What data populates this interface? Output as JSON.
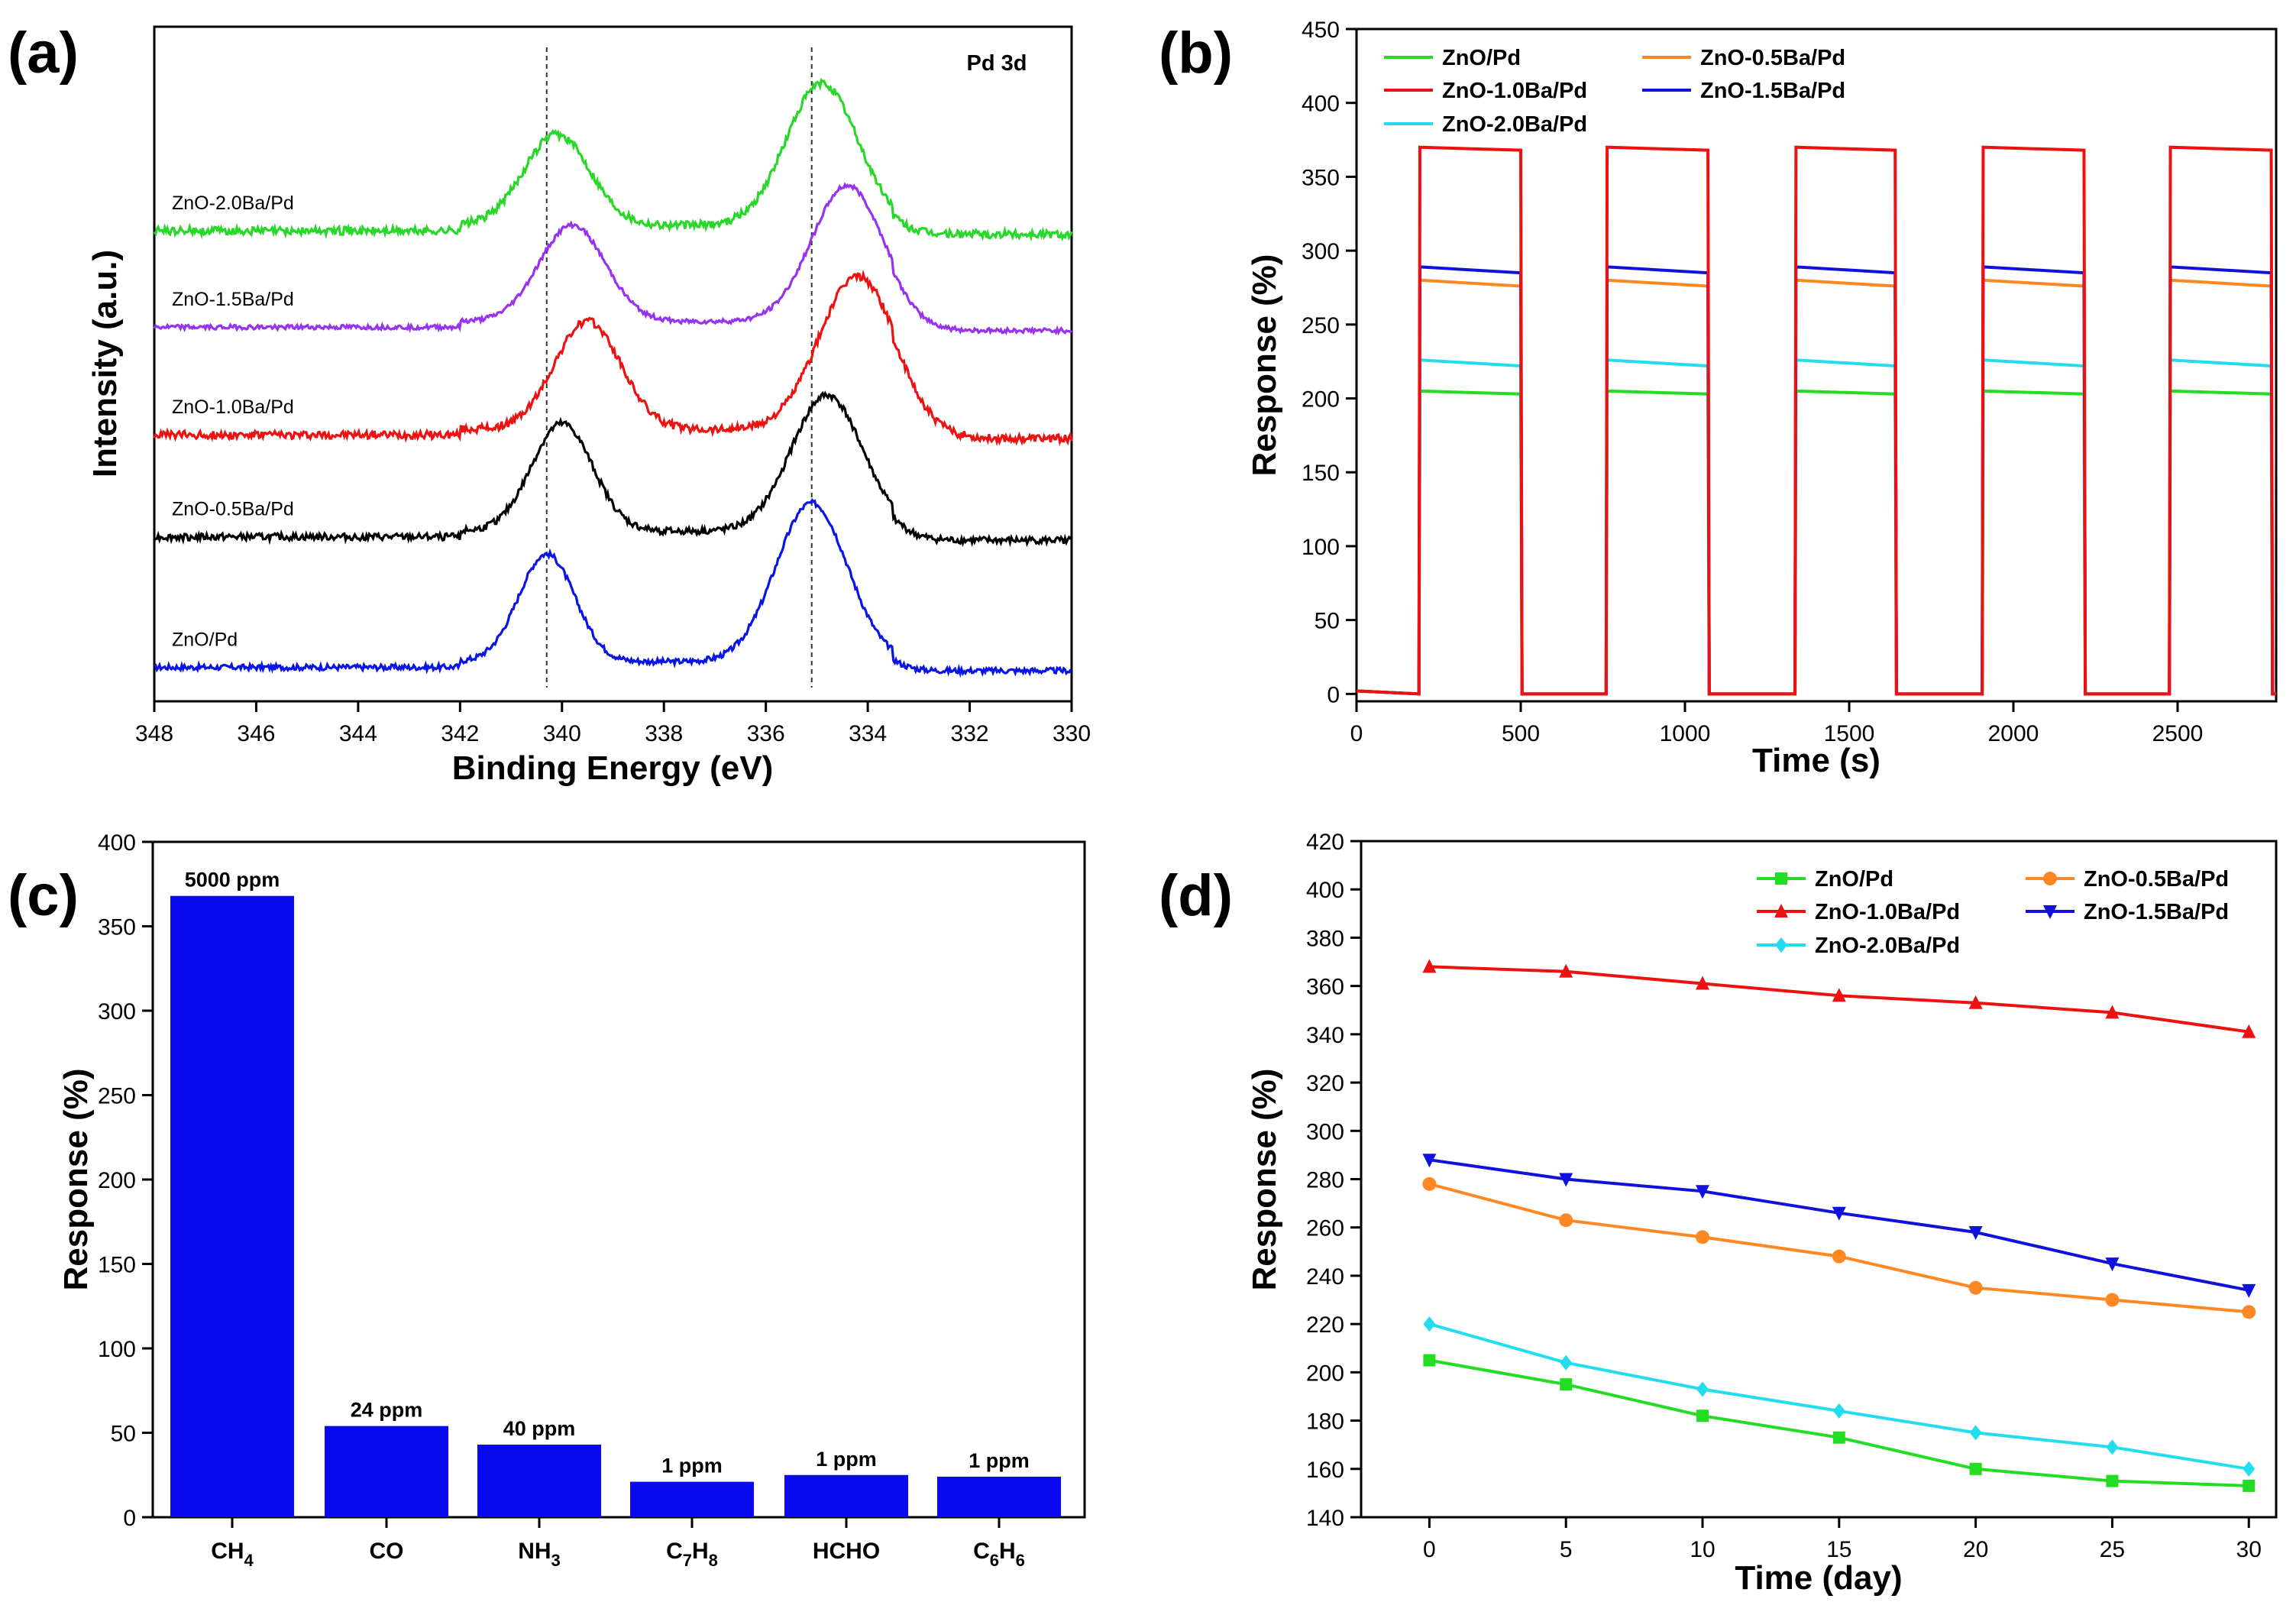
{
  "chart_data": [
    {
      "panel": "(a)",
      "type": "line",
      "title": "",
      "annotation": "Pd 3d",
      "xlabel": "Binding Energy (eV)",
      "ylabel": "Intensity (a.u.)",
      "xlim": [
        348,
        330
      ],
      "x_ticks": [
        348,
        346,
        344,
        342,
        340,
        338,
        336,
        334,
        332,
        330
      ],
      "y_ticks_shown": false,
      "reference_lines_x": [
        340.3,
        335.1
      ],
      "series": [
        {
          "name": "ZnO/Pd",
          "color": "#0a14e6",
          "baseline": 0.0,
          "peaks": [
            {
              "center": 340.3,
              "height": 0.95,
              "width": 0.55
            },
            {
              "center": 335.1,
              "height": 1.4,
              "width": 0.7
            }
          ],
          "noise": 0.025
        },
        {
          "name": "ZnO-0.5Ba/Pd",
          "color": "#000000",
          "baseline": 1.15,
          "peaks": [
            {
              "center": 340.0,
              "height": 0.95,
              "width": 0.6
            },
            {
              "center": 334.8,
              "height": 1.2,
              "width": 0.7
            }
          ],
          "noise": 0.03
        },
        {
          "name": "ZnO-1.0Ba/Pd",
          "color": "#ee1111",
          "baseline": 2.05,
          "peaks": [
            {
              "center": 339.5,
              "height": 0.95,
              "width": 0.65
            },
            {
              "center": 334.2,
              "height": 1.35,
              "width": 0.75
            }
          ],
          "noise": 0.035
        },
        {
          "name": "ZnO-1.5Ba/Pd",
          "color": "#9932ee",
          "baseline": 3.0,
          "peaks": [
            {
              "center": 339.8,
              "height": 0.85,
              "width": 0.65
            },
            {
              "center": 334.4,
              "height": 1.2,
              "width": 0.7
            }
          ],
          "noise": 0.02
        },
        {
          "name": "ZnO-2.0Ba/Pd",
          "color": "#28d828",
          "baseline": 3.85,
          "peaks": [
            {
              "center": 340.1,
              "height": 0.8,
              "width": 0.65
            },
            {
              "center": 334.9,
              "height": 1.25,
              "width": 0.7
            }
          ],
          "noise": 0.035
        }
      ]
    },
    {
      "panel": "(b)",
      "type": "line",
      "title": "",
      "xlabel": "Time (s)",
      "ylabel": "Response (%)",
      "xlim": [
        0,
        2800
      ],
      "ylim": [
        -5,
        450
      ],
      "x_ticks": [
        0,
        500,
        1000,
        1500,
        2000,
        2500
      ],
      "y_ticks": [
        0,
        50,
        100,
        150,
        200,
        250,
        300,
        350,
        400,
        450
      ],
      "pulses": [
        {
          "on": 190,
          "off": 500
        },
        {
          "on": 760,
          "off": 1070
        },
        {
          "on": 1335,
          "off": 1640
        },
        {
          "on": 1905,
          "off": 2215
        },
        {
          "on": 2475,
          "off": 2785
        }
      ],
      "series": [
        {
          "name": "ZnO/Pd",
          "color": "#22dd22",
          "start": 205,
          "end": 203
        },
        {
          "name": "ZnO-0.5Ba/Pd",
          "color": "#ff8822",
          "start": 280,
          "end": 276
        },
        {
          "name": "ZnO-1.0Ba/Pd",
          "color": "#ee1111",
          "start": 370,
          "end": 368
        },
        {
          "name": "ZnO-1.5Ba/Pd",
          "color": "#1111dd",
          "start": 289,
          "end": 285
        },
        {
          "name": "ZnO-2.0Ba/Pd",
          "color": "#22ddee",
          "start": 226,
          "end": 222
        }
      ],
      "legend": [
        "ZnO/Pd",
        "ZnO-0.5Ba/Pd",
        "ZnO-1.0Ba/Pd",
        "ZnO-1.5Ba/Pd",
        "ZnO-2.0Ba/Pd"
      ]
    },
    {
      "panel": "(c)",
      "type": "bar",
      "title": "",
      "xlabel": "",
      "ylabel": "Response (%)",
      "ylim": [
        0,
        400
      ],
      "y_ticks": [
        0,
        50,
        100,
        150,
        200,
        250,
        300,
        350,
        400
      ],
      "bar_color": "#0a0af0",
      "categories": [
        {
          "base": "CH",
          "sub": "4",
          "tail": ""
        },
        {
          "base": "CO",
          "sub": "",
          "tail": ""
        },
        {
          "base": "NH",
          "sub": "3",
          "tail": ""
        },
        {
          "base": "C",
          "sub": "7",
          "tail": "H",
          "sub2": "8"
        },
        {
          "base": "HCHO",
          "sub": "",
          "tail": ""
        },
        {
          "base": "C",
          "sub": "6",
          "tail": "H",
          "sub2": "6"
        }
      ],
      "values": [
        368,
        54,
        43,
        21,
        25,
        24
      ],
      "data_labels": [
        "5000 ppm",
        "24 ppm",
        "40 ppm",
        "1 ppm",
        "1 ppm",
        "1 ppm"
      ]
    },
    {
      "panel": "(d)",
      "type": "line",
      "title": "",
      "xlabel": "Time (day)",
      "ylabel": "Response (%)",
      "xlim": [
        -2.5,
        31
      ],
      "ylim": [
        140,
        420
      ],
      "x_ticks": [
        0,
        5,
        10,
        15,
        20,
        25,
        30
      ],
      "y_ticks": [
        140,
        160,
        180,
        200,
        220,
        240,
        260,
        280,
        300,
        320,
        340,
        360,
        380,
        400,
        420
      ],
      "x": [
        0,
        5,
        10,
        15,
        20,
        25,
        30
      ],
      "series": [
        {
          "name": "ZnO/Pd",
          "color": "#22dd22",
          "marker": "square",
          "values": [
            205,
            195,
            182,
            173,
            160,
            155,
            153
          ]
        },
        {
          "name": "ZnO-0.5Ba/Pd",
          "color": "#ff8822",
          "marker": "circle",
          "values": [
            278,
            263,
            256,
            248,
            235,
            230,
            225
          ]
        },
        {
          "name": "ZnO-1.0Ba/Pd",
          "color": "#ee1111",
          "marker": "triangle-up",
          "values": [
            368,
            366,
            361,
            356,
            353,
            349,
            341
          ]
        },
        {
          "name": "ZnO-1.5Ba/Pd",
          "color": "#1111dd",
          "marker": "triangle-down",
          "values": [
            288,
            280,
            275,
            266,
            258,
            245,
            234
          ]
        },
        {
          "name": "ZnO-2.0Ba/Pd",
          "color": "#22ddee",
          "marker": "diamond",
          "values": [
            220,
            204,
            193,
            184,
            175,
            169,
            160
          ]
        }
      ],
      "legend": [
        "ZnO/Pd",
        "ZnO-0.5Ba/Pd",
        "ZnO-1.0Ba/Pd",
        "ZnO-1.5Ba/Pd",
        "ZnO-2.0Ba/Pd"
      ]
    }
  ]
}
